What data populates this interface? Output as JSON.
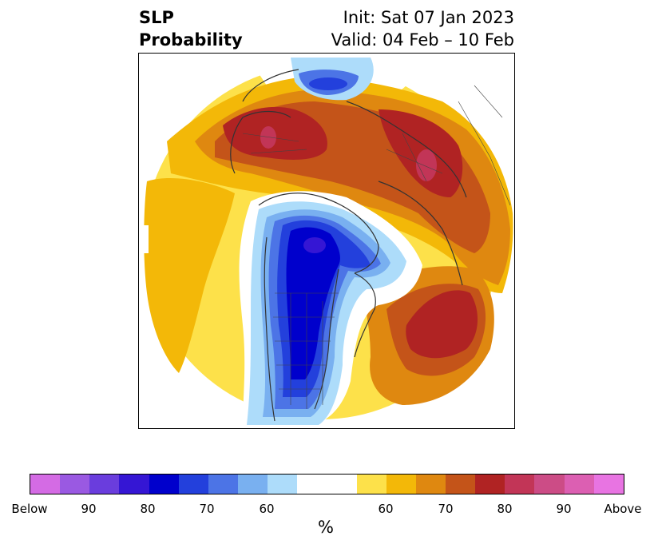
{
  "header": {
    "title_line1": "SLP",
    "title_line2": "Probability",
    "init_text": "Init: Sat 07 Jan 2023",
    "valid_text": "Valid: 04 Feb – 10 Feb"
  },
  "colorbar": {
    "colors": [
      "#d46be4",
      "#9a59e2",
      "#6a3ddd",
      "#3516d4",
      "#0000cc",
      "#2340dc",
      "#4c74e6",
      "#79b0f0",
      "#addcfa",
      "#ffffff",
      "#fde14a",
      "#f3b808",
      "#df8810",
      "#c45419",
      "#b02323",
      "#c23557",
      "#cc4c86",
      "#dc5fb2",
      "#e874e2"
    ],
    "tick_labels": [
      "Below",
      "90",
      "80",
      "70",
      "60",
      "60",
      "70",
      "80",
      "90",
      "Above"
    ],
    "unit_label": "%"
  },
  "map": {
    "projection": "north-polar-stereographic",
    "field": "SLP probability",
    "features": [
      "coastlines",
      "country-borders",
      "state-borders"
    ]
  }
}
